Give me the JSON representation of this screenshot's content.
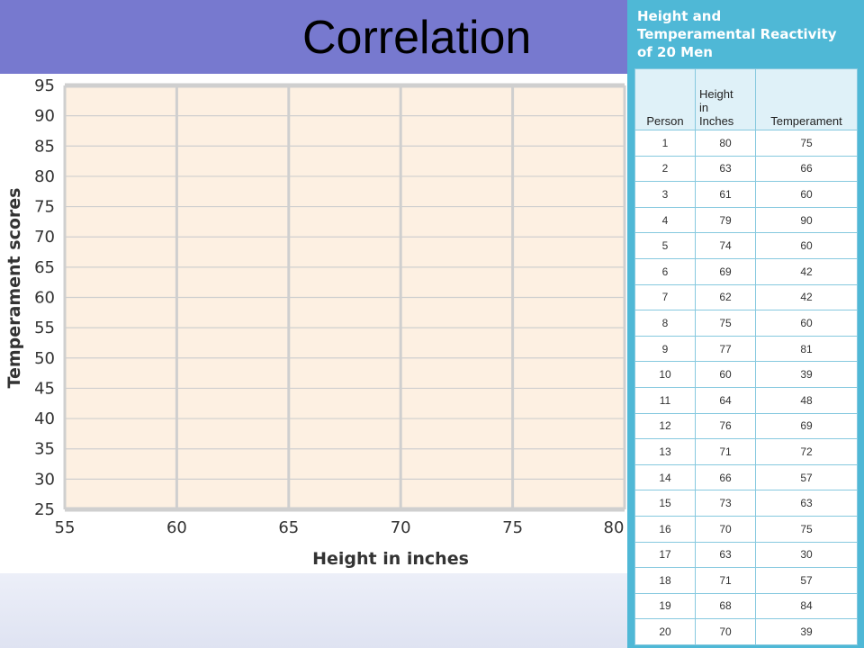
{
  "slide": {
    "title": "Correlation"
  },
  "table": {
    "title": "Height and\nTemperamental Reactivity\nof 20 Men",
    "headers": [
      "Person",
      "Height\nin\nInches",
      "Temperament"
    ],
    "rows": [
      [
        "1",
        "80",
        "75"
      ],
      [
        "2",
        "63",
        "66"
      ],
      [
        "3",
        "61",
        "60"
      ],
      [
        "4",
        "79",
        "90"
      ],
      [
        "5",
        "74",
        "60"
      ],
      [
        "6",
        "69",
        "42"
      ],
      [
        "7",
        "62",
        "42"
      ],
      [
        "8",
        "75",
        "60"
      ],
      [
        "9",
        "77",
        "81"
      ],
      [
        "10",
        "60",
        "39"
      ],
      [
        "11",
        "64",
        "48"
      ],
      [
        "12",
        "76",
        "69"
      ],
      [
        "13",
        "71",
        "72"
      ],
      [
        "14",
        "66",
        "57"
      ],
      [
        "15",
        "73",
        "63"
      ],
      [
        "16",
        "70",
        "75"
      ],
      [
        "17",
        "63",
        "30"
      ],
      [
        "18",
        "71",
        "57"
      ],
      [
        "19",
        "68",
        "84"
      ],
      [
        "20",
        "70",
        "39"
      ]
    ]
  },
  "chart_data": {
    "type": "scatter",
    "title": "",
    "xlabel": "Height in inches",
    "ylabel": "Temperament scores",
    "xlim": [
      55,
      80
    ],
    "ylim": [
      25,
      95
    ],
    "xticks": [
      55,
      60,
      65,
      70,
      75,
      80
    ],
    "yticks": [
      25,
      30,
      35,
      40,
      45,
      50,
      55,
      60,
      65,
      70,
      75,
      80,
      85,
      90,
      95
    ],
    "grid": true,
    "plot_background": "#fdf0e2",
    "grid_color": "#cfcfcf",
    "series": [
      {
        "x": [],
        "y": []
      }
    ]
  }
}
